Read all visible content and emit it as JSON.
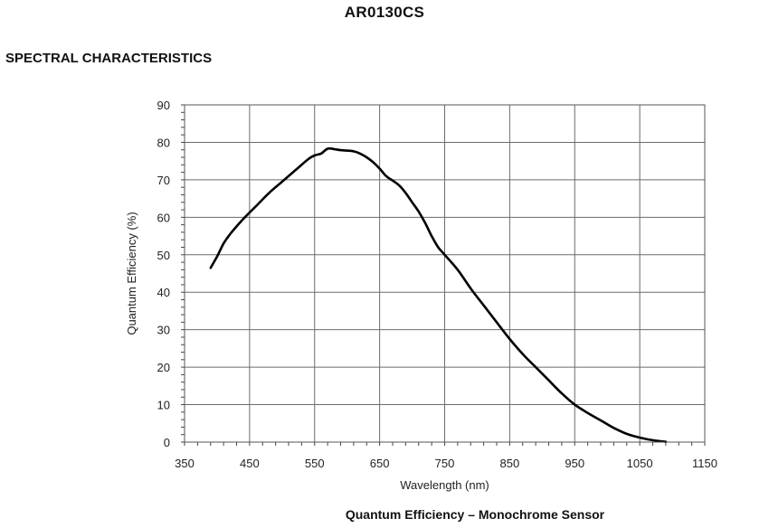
{
  "document": {
    "title": "AR0130CS",
    "section": "SPECTRAL CHARACTERISTICS",
    "caption": "Quantum Efficiency – Monochrome Sensor"
  },
  "chart_data": {
    "type": "line",
    "title": "Quantum Efficiency – Monochrome Sensor",
    "xlabel": "Wavelength (nm)",
    "ylabel": "Quantum Efficiency (%)",
    "xlim": [
      350,
      1150
    ],
    "ylim": [
      0,
      90
    ],
    "xticks": [
      350,
      450,
      550,
      650,
      750,
      850,
      950,
      1050,
      1150
    ],
    "yticks": [
      0,
      10,
      20,
      30,
      40,
      50,
      60,
      70,
      80,
      90
    ],
    "grid": true,
    "line_color": "#000000",
    "grid_color": "#6b6b6b",
    "series": [
      {
        "x": [
          390,
          400,
          410,
          420,
          440,
          460,
          480,
          500,
          520,
          540,
          550,
          560,
          570,
          580,
          590,
          600,
          610,
          620,
          630,
          640,
          650,
          660,
          670,
          680,
          690,
          700,
          710,
          720,
          730,
          740,
          750,
          770,
          790,
          810,
          830,
          850,
          870,
          890,
          910,
          930,
          950,
          970,
          990,
          1010,
          1030,
          1050,
          1070,
          1090
        ],
        "y": [
          46.5,
          49.5,
          53,
          55.5,
          59.5,
          63,
          66.5,
          69.5,
          72.5,
          75.5,
          76.5,
          77,
          78.3,
          78.2,
          77.9,
          77.8,
          77.6,
          77,
          76,
          74.7,
          73,
          71,
          69.8,
          68.5,
          66.5,
          64,
          61.5,
          58.5,
          55,
          52,
          50,
          46,
          41,
          36.5,
          32,
          27.5,
          23.5,
          20,
          16.5,
          13,
          10,
          7.8,
          5.8,
          3.8,
          2.2,
          1.2,
          0.5,
          0.1
        ]
      }
    ]
  }
}
